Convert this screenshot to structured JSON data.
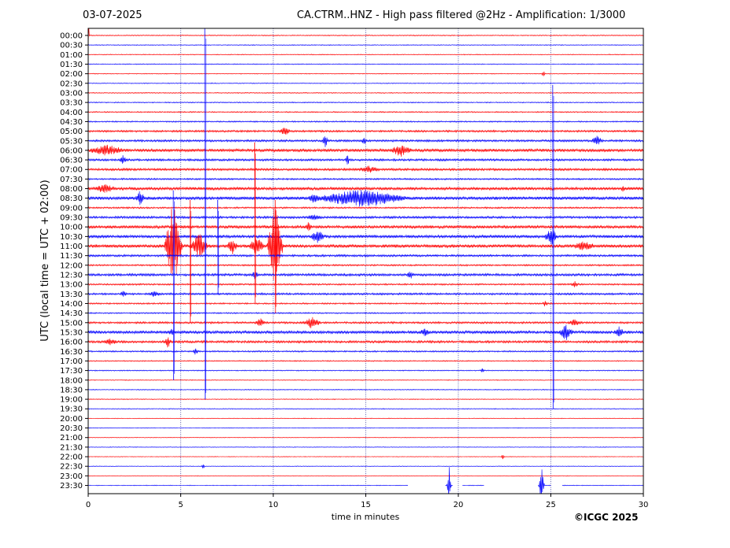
{
  "header": {
    "date": "03-07-2025",
    "title": "CA.CTRM..HNZ - High pass filtered @2Hz - Amplification: 1/3000"
  },
  "footer": {
    "credit": "©ICGC 2025"
  },
  "colors": {
    "red_trace": "#ff0000",
    "blue_trace": "#0000ff",
    "grid": "#000080",
    "axes": "#000000"
  },
  "chart_data": {
    "type": "line",
    "title": "CA.CTRM..HNZ - High pass filtered @2Hz - Amplification: 1/3000",
    "xlabel": "time in minutes",
    "ylabel": "UTC (local time = UTC + 02:00)",
    "xlim": [
      0,
      30
    ],
    "xticks": [
      0,
      5,
      10,
      15,
      20,
      25,
      30
    ],
    "vertical_grid_minutes": [
      5,
      10,
      15,
      20,
      25
    ],
    "grid": true,
    "legend": "none",
    "rows": [
      "00:00",
      "00:30",
      "01:00",
      "01:30",
      "02:00",
      "02:30",
      "03:00",
      "03:30",
      "04:00",
      "04:30",
      "05:00",
      "05:30",
      "06:00",
      "06:30",
      "07:00",
      "07:30",
      "08:00",
      "08:30",
      "09:00",
      "09:30",
      "10:00",
      "10:30",
      "11:00",
      "11:30",
      "12:00",
      "12:30",
      "13:00",
      "13:30",
      "14:00",
      "14:30",
      "15:00",
      "15:30",
      "16:00",
      "16:30",
      "17:00",
      "17:30",
      "18:00",
      "18:30",
      "19:00",
      "19:30",
      "20:00",
      "20:30",
      "21:00",
      "21:30",
      "22:00",
      "22:30",
      "23:00",
      "23:30"
    ],
    "row_colors": [
      "red",
      "blue"
    ],
    "baseline_noise": [
      0.6,
      0.5,
      0.5,
      0.5,
      0.5,
      0.5,
      0.6,
      0.6,
      0.7,
      0.8,
      1.2,
      1.3,
      1.8,
      1.3,
      1.4,
      1.0,
      1.8,
      2.0,
      1.0,
      1.4,
      1.8,
      1.8,
      2.0,
      1.3,
      1.0,
      1.5,
      1.0,
      1.2,
      0.9,
      0.8,
      1.2,
      1.8,
      1.4,
      0.9,
      0.7,
      0.6,
      0.5,
      0.5,
      0.5,
      0.5,
      0.4,
      0.4,
      0.4,
      0.4,
      0.4,
      0.4,
      0.4,
      0.4
    ],
    "events": [
      {
        "row": 0,
        "minute": 0.0,
        "amp": 28,
        "dur": 0.05
      },
      {
        "row": 4,
        "minute": 24.6,
        "amp": 4,
        "dur": 0.1
      },
      {
        "row": 10,
        "minute": 10.6,
        "amp": 6,
        "dur": 0.3
      },
      {
        "row": 11,
        "minute": 12.8,
        "amp": 9,
        "dur": 0.15
      },
      {
        "row": 11,
        "minute": 14.9,
        "amp": 5,
        "dur": 0.15
      },
      {
        "row": 11,
        "minute": 27.5,
        "amp": 6,
        "dur": 0.3
      },
      {
        "row": 12,
        "minute": 1.0,
        "amp": 6,
        "dur": 1.0
      },
      {
        "row": 12,
        "minute": 16.9,
        "amp": 7,
        "dur": 0.6
      },
      {
        "row": 13,
        "minute": 1.9,
        "amp": 6,
        "dur": 0.2
      },
      {
        "row": 13,
        "minute": 14.0,
        "amp": 9,
        "dur": 0.1
      },
      {
        "row": 14,
        "minute": 15.2,
        "amp": 4,
        "dur": 0.6
      },
      {
        "row": 16,
        "minute": 0.9,
        "amp": 5,
        "dur": 0.6
      },
      {
        "row": 16,
        "minute": 28.9,
        "amp": 5,
        "dur": 0.1
      },
      {
        "row": 17,
        "minute": 2.8,
        "amp": 8,
        "dur": 0.25
      },
      {
        "row": 17,
        "minute": 14.8,
        "amp": 11,
        "dur": 2.5
      },
      {
        "row": 17,
        "minute": 12.2,
        "amp": 6,
        "dur": 0.3
      },
      {
        "row": 19,
        "minute": 12.2,
        "amp": 4,
        "dur": 0.4
      },
      {
        "row": 20,
        "minute": 11.9,
        "amp": 6,
        "dur": 0.2
      },
      {
        "row": 21,
        "minute": 12.4,
        "amp": 9,
        "dur": 0.4
      },
      {
        "row": 21,
        "minute": 25.0,
        "amp": 12,
        "dur": 0.35
      },
      {
        "row": 22,
        "minute": 4.6,
        "amp": 58,
        "dur": 0.5
      },
      {
        "row": 22,
        "minute": 6.0,
        "amp": 16,
        "dur": 0.5
      },
      {
        "row": 22,
        "minute": 7.8,
        "amp": 10,
        "dur": 0.3
      },
      {
        "row": 22,
        "minute": 9.1,
        "amp": 12,
        "dur": 0.4
      },
      {
        "row": 22,
        "minute": 10.1,
        "amp": 55,
        "dur": 0.45
      },
      {
        "row": 22,
        "minute": 26.8,
        "amp": 5,
        "dur": 0.6
      },
      {
        "row": 25,
        "minute": 9.0,
        "amp": 5,
        "dur": 0.2
      },
      {
        "row": 25,
        "minute": 17.4,
        "amp": 5,
        "dur": 0.2
      },
      {
        "row": 26,
        "minute": 26.3,
        "amp": 4,
        "dur": 0.2
      },
      {
        "row": 27,
        "minute": 1.9,
        "amp": 4,
        "dur": 0.2
      },
      {
        "row": 27,
        "minute": 3.6,
        "amp": 4,
        "dur": 0.3
      },
      {
        "row": 28,
        "minute": 24.7,
        "amp": 4,
        "dur": 0.15
      },
      {
        "row": 30,
        "minute": 12.1,
        "amp": 8,
        "dur": 0.5
      },
      {
        "row": 30,
        "minute": 9.3,
        "amp": 5,
        "dur": 0.3
      },
      {
        "row": 30,
        "minute": 26.3,
        "amp": 4,
        "dur": 0.4
      },
      {
        "row": 31,
        "minute": 25.8,
        "amp": 10,
        "dur": 0.4
      },
      {
        "row": 31,
        "minute": 28.7,
        "amp": 6,
        "dur": 0.3
      },
      {
        "row": 31,
        "minute": 4.5,
        "amp": 5,
        "dur": 0.15
      },
      {
        "row": 31,
        "minute": 18.2,
        "amp": 5,
        "dur": 0.3
      },
      {
        "row": 32,
        "minute": 4.3,
        "amp": 7,
        "dur": 0.2
      },
      {
        "row": 32,
        "minute": 1.2,
        "amp": 4,
        "dur": 0.4
      },
      {
        "row": 33,
        "minute": 5.8,
        "amp": 5,
        "dur": 0.15
      },
      {
        "row": 35,
        "minute": 21.3,
        "amp": 4,
        "dur": 0.1
      },
      {
        "row": 44,
        "minute": 22.4,
        "amp": 3,
        "dur": 0.1
      },
      {
        "row": 45,
        "minute": 6.2,
        "amp": 4,
        "dur": 0.1
      },
      {
        "row": 47,
        "minute": 19.5,
        "amp": 26,
        "dur": 0.12
      },
      {
        "row": 47,
        "minute": 24.5,
        "amp": 26,
        "dur": 0.15
      }
    ],
    "long_spikes": [
      {
        "minute": 6.3,
        "from_row": 0,
        "to_row": 38
      },
      {
        "minute": 25.1,
        "from_row": 6,
        "to_row": 39
      },
      {
        "minute": 4.6,
        "from_row": 17,
        "to_row": 36
      },
      {
        "minute": 9.0,
        "from_row": 12,
        "to_row": 28
      },
      {
        "minute": 10.1,
        "from_row": 18,
        "to_row": 29
      },
      {
        "minute": 7.0,
        "from_row": 18,
        "to_row": 27
      },
      {
        "minute": 5.5,
        "from_row": 18,
        "to_row": 30
      }
    ],
    "gaps": [
      {
        "row": 47,
        "from": 17.3,
        "to": 19.3
      },
      {
        "row": 47,
        "from": 19.7,
        "to": 20.2
      },
      {
        "row": 47,
        "from": 21.4,
        "to": 24.3
      },
      {
        "row": 47,
        "from": 25.0,
        "to": 25.6
      }
    ]
  }
}
